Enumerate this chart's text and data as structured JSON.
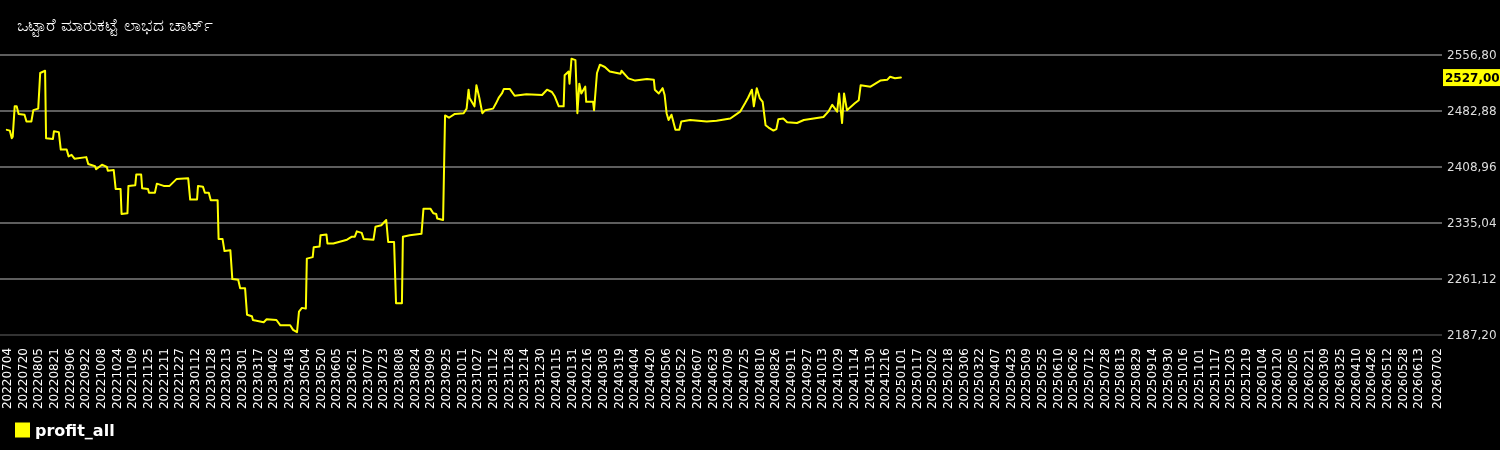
{
  "chart_data": {
    "type": "line",
    "title": "ಒಟ್ಟಾರೆ ಮಾರುಕಟ್ಟೆ ಲಾಭದ ಚಾರ್ಟ್",
    "x": [
      "2022-07-04",
      "2022-07-07",
      "2022-07-09",
      "2022-07-10",
      "2022-07-12",
      "2022-07-14",
      "2022-07-16",
      "2022-07-22",
      "2022-07-24",
      "2022-07-29",
      "2022-07-31",
      "2022-08-05",
      "2022-08-07",
      "2022-08-12",
      "2022-08-13",
      "2022-08-20",
      "2022-08-21",
      "2022-08-26",
      "2022-08-28",
      "2022-09-03",
      "2022-09-05",
      "2022-09-08",
      "2022-09-11",
      "2022-09-23",
      "2022-09-25",
      "2022-10-02",
      "2022-10-03",
      "2022-10-09",
      "2022-10-14",
      "2022-10-15",
      "2022-10-21",
      "2022-10-23",
      "2022-10-28",
      "2022-10-29",
      "2022-11-04",
      "2022-11-05",
      "2022-11-12",
      "2022-11-13",
      "2022-11-18",
      "2022-11-19",
      "2022-11-25",
      "2022-11-26",
      "2022-12-02",
      "2022-12-04",
      "2022-12-11",
      "2022-12-17",
      "2022-12-24",
      "2023-01-05",
      "2023-01-07",
      "2023-01-14",
      "2023-01-15",
      "2023-01-20",
      "2023-01-22",
      "2023-01-26",
      "2023-01-28",
      "2023-02-04",
      "2023-02-05",
      "2023-02-09",
      "2023-02-11",
      "2023-02-17",
      "2023-02-19",
      "2023-02-25",
      "2023-02-27",
      "2023-03-04",
      "2023-03-06",
      "2023-03-11",
      "2023-03-12",
      "2023-03-23",
      "2023-03-26",
      "2023-04-05",
      "2023-04-09",
      "2023-04-19",
      "2023-04-22",
      "2023-04-26",
      "2023-04-28",
      "2023-05-01",
      "2023-05-05",
      "2023-05-06",
      "2023-05-12",
      "2023-05-13",
      "2023-05-19",
      "2023-05-20",
      "2023-05-26",
      "2023-05-27",
      "2023-06-02",
      "2023-06-16",
      "2023-06-21",
      "2023-06-24",
      "2023-06-26",
      "2023-07-01",
      "2023-07-03",
      "2023-07-13",
      "2023-07-15",
      "2023-07-21",
      "2023-07-26",
      "2023-07-28",
      "2023-08-03",
      "2023-08-05",
      "2023-08-11",
      "2023-08-12",
      "2023-08-19",
      "2023-08-31",
      "2023-09-02",
      "2023-09-09",
      "2023-09-12",
      "2023-09-15",
      "2023-09-16",
      "2023-09-22",
      "2023-09-24",
      "2023-09-28",
      "2023-10-04",
      "2023-10-13",
      "2023-10-16",
      "2023-10-18",
      "2023-10-19",
      "2023-10-24",
      "2023-10-26",
      "2023-10-29",
      "2023-11-01",
      "2023-11-04",
      "2023-11-12",
      "2023-11-15",
      "2023-11-18",
      "2023-11-21",
      "2023-11-23",
      "2023-11-29",
      "2023-12-04",
      "2023-12-16",
      "2024-01-01",
      "2024-01-06",
      "2024-01-11",
      "2024-01-14",
      "2024-01-18",
      "2024-01-23",
      "2024-01-24",
      "2024-01-28",
      "2024-01-29",
      "2024-01-31",
      "2024-02-04",
      "2024-02-06",
      "2024-02-08",
      "2024-02-10",
      "2024-02-14",
      "2024-02-15",
      "2024-02-22",
      "2024-02-23",
      "2024-02-26",
      "2024-02-29",
      "2024-03-05",
      "2024-03-10",
      "2024-03-21",
      "2024-03-22",
      "2024-03-29",
      "2024-04-05",
      "2024-04-17",
      "2024-04-24",
      "2024-04-25",
      "2024-04-29",
      "2024-05-03",
      "2024-05-05",
      "2024-05-07",
      "2024-05-09",
      "2024-05-12",
      "2024-05-16",
      "2024-05-20",
      "2024-05-22",
      "2024-05-31",
      "2024-06-17",
      "2024-06-27",
      "2024-07-11",
      "2024-07-21",
      "2024-07-26",
      "2024-07-29",
      "2024-08-02",
      "2024-08-04",
      "2024-08-07",
      "2024-08-10",
      "2024-08-13",
      "2024-08-16",
      "2024-08-19",
      "2024-08-24",
      "2024-08-27",
      "2024-08-29",
      "2024-09-03",
      "2024-09-07",
      "2024-09-17",
      "2024-09-24",
      "2024-10-04",
      "2024-10-14",
      "2024-10-19",
      "2024-10-23",
      "2024-10-28",
      "2024-10-30",
      "2024-11-02",
      "2024-11-04",
      "2024-11-07",
      "2024-11-15",
      "2024-11-19",
      "2024-11-21",
      "2024-12-01",
      "2024-12-06",
      "2024-12-11",
      "2024-12-18",
      "2024-12-21",
      "2024-12-26",
      "2025-01-01"
    ],
    "series": [
      {
        "name": "profit_all",
        "color": "#ffff00",
        "values": [
          2458,
          2457,
          2447,
          2449,
          2489,
          2489,
          2479,
          2478,
          2469,
          2469,
          2484,
          2486,
          2533,
          2536,
          2447,
          2446,
          2456,
          2455,
          2432,
          2432,
          2423,
          2425,
          2420,
          2422,
          2413,
          2410,
          2406,
          2412,
          2409,
          2404,
          2405,
          2380,
          2380,
          2347,
          2348,
          2384,
          2385,
          2399,
          2399,
          2381,
          2380,
          2375,
          2375,
          2387,
          2384,
          2384,
          2393,
          2394,
          2366,
          2366,
          2384,
          2383,
          2375,
          2375,
          2365,
          2365,
          2314,
          2314,
          2298,
          2299,
          2261,
          2260,
          2249,
          2249,
          2214,
          2212,
          2207,
          2204,
          2208,
          2207,
          2200,
          2200,
          2194,
          2191,
          2218,
          2223,
          2222,
          2288,
          2290,
          2303,
          2304,
          2319,
          2320,
          2308,
          2308,
          2313,
          2317,
          2317,
          2324,
          2322,
          2314,
          2313,
          2330,
          2332,
          2339,
          2310,
          2310,
          2229,
          2229,
          2317,
          2319,
          2321,
          2354,
          2354,
          2348,
          2347,
          2341,
          2339,
          2477,
          2474,
          2479,
          2480,
          2486,
          2511,
          2500,
          2489,
          2517,
          2500,
          2480,
          2484,
          2486,
          2493,
          2501,
          2506,
          2512,
          2512,
          2503,
          2505,
          2504,
          2511,
          2508,
          2502,
          2489,
          2489,
          2530,
          2535,
          2519,
          2552,
          2550,
          2480,
          2519,
          2506,
          2515,
          2495,
          2495,
          2484,
          2533,
          2544,
          2541,
          2535,
          2532,
          2536,
          2526,
          2523,
          2525,
          2524,
          2511,
          2506,
          2513,
          2504,
          2480,
          2471,
          2478,
          2458,
          2458,
          2469,
          2471,
          2469,
          2470,
          2473,
          2482,
          2493,
          2500,
          2511,
          2489,
          2513,
          2500,
          2495,
          2464,
          2461,
          2457,
          2459,
          2472,
          2473,
          2468,
          2467,
          2471,
          2473,
          2475,
          2482,
          2491,
          2482,
          2506,
          2467,
          2506,
          2484,
          2493,
          2497,
          2517,
          2515,
          2519,
          2523,
          2524,
          2528,
          2526,
          2527
        ]
      }
    ],
    "xlim": [
      "2022-06-27",
      "2026-07-07"
    ],
    "xticks": [
      {
        "value": "2022-07-04",
        "label": "20220704"
      },
      {
        "value": "2022-07-20",
        "label": "20220720"
      },
      {
        "value": "2022-08-05",
        "label": "20220805"
      },
      {
        "value": "2022-08-21",
        "label": "20220821"
      },
      {
        "value": "2022-09-06",
        "label": "20220906"
      },
      {
        "value": "2022-09-22",
        "label": "20220922"
      },
      {
        "value": "2022-10-08",
        "label": "20221008"
      },
      {
        "value": "2022-10-24",
        "label": "20221024"
      },
      {
        "value": "2022-11-09",
        "label": "20221109"
      },
      {
        "value": "2022-11-25",
        "label": "20221125"
      },
      {
        "value": "2022-12-11",
        "label": "20221211"
      },
      {
        "value": "2022-12-27",
        "label": "20221227"
      },
      {
        "value": "2023-01-12",
        "label": "20230112"
      },
      {
        "value": "2023-01-28",
        "label": "20230128"
      },
      {
        "value": "2023-02-13",
        "label": "20230213"
      },
      {
        "value": "2023-03-01",
        "label": "20230301"
      },
      {
        "value": "2023-03-17",
        "label": "20230317"
      },
      {
        "value": "2023-04-02",
        "label": "20230402"
      },
      {
        "value": "2023-04-18",
        "label": "20230418"
      },
      {
        "value": "2023-05-04",
        "label": "20230504"
      },
      {
        "value": "2023-05-20",
        "label": "20230520"
      },
      {
        "value": "2023-06-05",
        "label": "20230605"
      },
      {
        "value": "2023-06-21",
        "label": "20230621"
      },
      {
        "value": "2023-07-07",
        "label": "20230707"
      },
      {
        "value": "2023-07-23",
        "label": "20230723"
      },
      {
        "value": "2023-08-08",
        "label": "20230808"
      },
      {
        "value": "2023-08-24",
        "label": "20230824"
      },
      {
        "value": "2023-09-09",
        "label": "20230909"
      },
      {
        "value": "2023-09-25",
        "label": "20230925"
      },
      {
        "value": "2023-10-11",
        "label": "20231011"
      },
      {
        "value": "2023-10-27",
        "label": "20231027"
      },
      {
        "value": "2023-11-12",
        "label": "20231112"
      },
      {
        "value": "2023-11-28",
        "label": "20231128"
      },
      {
        "value": "2023-12-14",
        "label": "20231214"
      },
      {
        "value": "2023-12-30",
        "label": "20231230"
      },
      {
        "value": "2024-01-15",
        "label": "20240115"
      },
      {
        "value": "2024-01-31",
        "label": "20240131"
      },
      {
        "value": "2024-02-16",
        "label": "20240216"
      },
      {
        "value": "2024-03-03",
        "label": "20240303"
      },
      {
        "value": "2024-03-19",
        "label": "20240319"
      },
      {
        "value": "2024-04-04",
        "label": "20240404"
      },
      {
        "value": "2024-04-20",
        "label": "20240420"
      },
      {
        "value": "2024-05-06",
        "label": "20240506"
      },
      {
        "value": "2024-05-22",
        "label": "20240522"
      },
      {
        "value": "2024-06-07",
        "label": "20240607"
      },
      {
        "value": "2024-06-23",
        "label": "20240623"
      },
      {
        "value": "2024-07-09",
        "label": "20240709"
      },
      {
        "value": "2024-07-25",
        "label": "20240725"
      },
      {
        "value": "2024-08-10",
        "label": "20240810"
      },
      {
        "value": "2024-08-26",
        "label": "20240826"
      },
      {
        "value": "2024-09-11",
        "label": "20240911"
      },
      {
        "value": "2024-09-27",
        "label": "20240927"
      },
      {
        "value": "2024-10-13",
        "label": "20241013"
      },
      {
        "value": "2024-10-29",
        "label": "20241029"
      },
      {
        "value": "2024-11-14",
        "label": "20241114"
      },
      {
        "value": "2024-11-30",
        "label": "20241130"
      },
      {
        "value": "2024-12-16",
        "label": "20241216"
      },
      {
        "value": "2025-01-01",
        "label": "20250101"
      },
      {
        "value": "2025-01-17",
        "label": "20250117"
      },
      {
        "value": "2025-02-02",
        "label": "20250202"
      },
      {
        "value": "2025-02-18",
        "label": "20250218"
      },
      {
        "value": "2025-03-06",
        "label": "20250306"
      },
      {
        "value": "2025-03-22",
        "label": "20250322"
      },
      {
        "value": "2025-04-07",
        "label": "20250407"
      },
      {
        "value": "2025-04-23",
        "label": "20250423"
      },
      {
        "value": "2025-05-09",
        "label": "20250509"
      },
      {
        "value": "2025-05-25",
        "label": "20250525"
      },
      {
        "value": "2025-06-10",
        "label": "20250610"
      },
      {
        "value": "2025-06-26",
        "label": "20250626"
      },
      {
        "value": "2025-07-12",
        "label": "20250712"
      },
      {
        "value": "2025-07-28",
        "label": "20250728"
      },
      {
        "value": "2025-08-13",
        "label": "20250813"
      },
      {
        "value": "2025-08-29",
        "label": "20250829"
      },
      {
        "value": "2025-09-14",
        "label": "20250914"
      },
      {
        "value": "2025-09-30",
        "label": "20250930"
      },
      {
        "value": "2025-10-16",
        "label": "20251016"
      },
      {
        "value": "2025-11-01",
        "label": "20251101"
      },
      {
        "value": "2025-11-17",
        "label": "20251117"
      },
      {
        "value": "2025-12-03",
        "label": "20251203"
      },
      {
        "value": "2025-12-19",
        "label": "20251219"
      },
      {
        "value": "2026-01-04",
        "label": "20260104"
      },
      {
        "value": "2026-01-20",
        "label": "20260120"
      },
      {
        "value": "2026-02-05",
        "label": "20260205"
      },
      {
        "value": "2026-02-21",
        "label": "20260221"
      },
      {
        "value": "2026-03-09",
        "label": "20260309"
      },
      {
        "value": "2026-03-25",
        "label": "20260325"
      },
      {
        "value": "2026-04-10",
        "label": "20260410"
      },
      {
        "value": "2026-04-26",
        "label": "20260426"
      },
      {
        "value": "2026-05-12",
        "label": "20260512"
      },
      {
        "value": "2026-05-28",
        "label": "20260528"
      },
      {
        "value": "2026-06-13",
        "label": "20260613"
      },
      {
        "value": "2026-07-02",
        "label": "20260702"
      }
    ],
    "ylim": [
      2187.2,
      2556.8
    ],
    "yticks": [
      {
        "value": 2187.2,
        "label": "2187,20"
      },
      {
        "value": 2261.12,
        "label": "2261,12"
      },
      {
        "value": 2335.04,
        "label": "2335,04"
      },
      {
        "value": 2408.96,
        "label": "2408,96"
      },
      {
        "value": 2482.88,
        "label": "2482,88"
      },
      {
        "value": 2556.8,
        "label": "2556,80"
      }
    ],
    "grid": "y",
    "legend": "bottom left",
    "annotations": [
      "2527,00"
    ]
  }
}
